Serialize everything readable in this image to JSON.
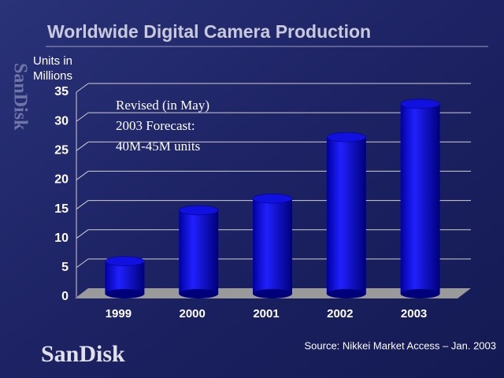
{
  "chart_data": {
    "type": "bar",
    "title": "Worldwide Digital Camera Production",
    "y_label": [
      "Units in",
      "Millions"
    ],
    "annotation": [
      "Revised (in May)",
      "2003 Forecast:",
      "40M-45M units"
    ],
    "categories": [
      "1999",
      "2000",
      "2001",
      "2002",
      "2003"
    ],
    "values": [
      5.3,
      14,
      16,
      26.5,
      32.2
    ],
    "color": "#1010e0",
    "ylim": [
      0,
      35
    ],
    "yticks": [
      0,
      5,
      10,
      15,
      20,
      25,
      30,
      35
    ],
    "grid": true,
    "source": "Source: Nikkei Market Access – Jan. 2003",
    "logo": "SanDisk"
  }
}
